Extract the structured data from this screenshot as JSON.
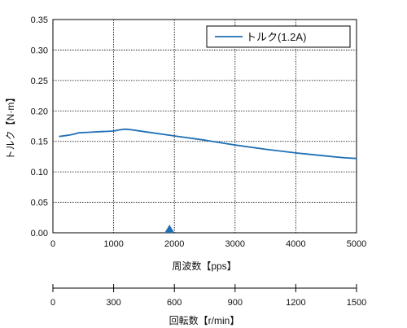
{
  "chart_data": {
    "type": "line",
    "xlabel": "周波数【pps】",
    "ylabel": "トルク【N·m】",
    "xlim": [
      0,
      5000
    ],
    "ylim": [
      0,
      0.35
    ],
    "x_ticks": [
      "0",
      "1000",
      "2000",
      "3000",
      "4000",
      "5000"
    ],
    "y_ticks": [
      "0.00",
      "0.05",
      "0.10",
      "0.15",
      "0.20",
      "0.25",
      "0.30",
      "0.35"
    ],
    "grid": true,
    "legend_position": "top-right",
    "series": [
      {
        "name": "トルク(1.2A)",
        "color": "#1f6fb5",
        "x": [
          100,
          250,
          350,
          420,
          600,
          800,
          1000,
          1100,
          1200,
          1300,
          1500,
          2000,
          2500,
          3000,
          3500,
          4000,
          4500,
          4800,
          5000
        ],
        "y": [
          0.158,
          0.16,
          0.162,
          0.164,
          0.165,
          0.166,
          0.167,
          0.169,
          0.17,
          0.169,
          0.166,
          0.159,
          0.152,
          0.144,
          0.137,
          0.131,
          0.126,
          0.123,
          0.122
        ]
      }
    ],
    "marker": {
      "x": 1920,
      "symbol": "triangle-up",
      "color": "#1f6fb5"
    },
    "secondary_axis": {
      "label": "回転数【r/min】",
      "range": [
        0,
        1500
      ],
      "ticks": [
        "0",
        "300",
        "600",
        "900",
        "1200",
        "1500"
      ]
    }
  }
}
